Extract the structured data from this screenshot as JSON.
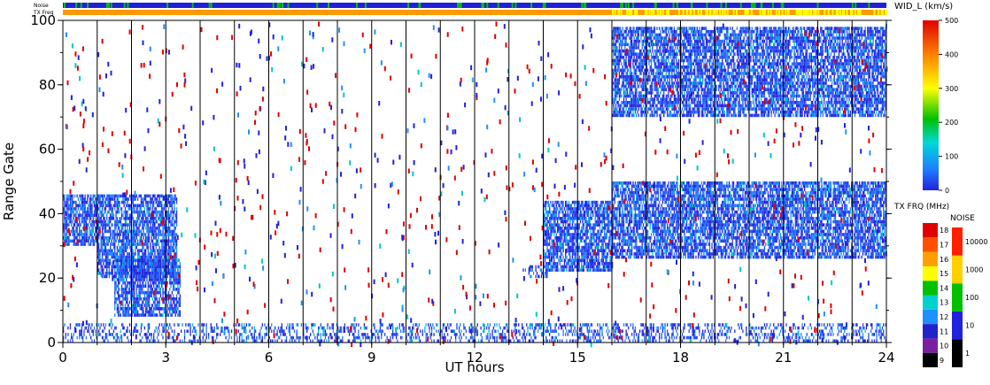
{
  "chart_data": {
    "type": "heatmap",
    "title": "",
    "xlabel": "UT hours",
    "ylabel": "Range Gate",
    "xlim": [
      0,
      24
    ],
    "ylim": [
      0,
      100
    ],
    "xticks": [
      "0",
      "3",
      "6",
      "9",
      "12",
      "15",
      "18",
      "21",
      "24"
    ],
    "yticks": [
      "0",
      "20",
      "40",
      "60",
      "80",
      "100"
    ],
    "hour_grid_lines": [
      1,
      2,
      3,
      4,
      5,
      6,
      7,
      8,
      9,
      10,
      11,
      12,
      13,
      14,
      15,
      16,
      17,
      18,
      19,
      20,
      21,
      22,
      23
    ],
    "strips": {
      "noise_label": "Noise",
      "txfreq_label": "TX Freq",
      "noise_base_color": "#2020d8",
      "txfreq_base_color": "#ff9a00"
    },
    "main_colorbar": {
      "title": "WID_L (km/s)",
      "ticks": [
        "0",
        "100",
        "200",
        "300",
        "400",
        "500"
      ],
      "range": [
        0,
        500
      ]
    },
    "txfreq_colorbar": {
      "title": "TX FRQ (MHz)",
      "ticks": [
        "9",
        "10",
        "11",
        "12",
        "13",
        "14",
        "15",
        "16",
        "17",
        "18"
      ],
      "colors": [
        "#000000",
        "#7a1fa0",
        "#2222cc",
        "#1e90ff",
        "#00d0d0",
        "#00c000",
        "#ffff00",
        "#ffa000",
        "#ff5000",
        "#e00000"
      ]
    },
    "noise_colorbar": {
      "title": "NOISE",
      "ticks": [
        "1",
        "10",
        "100",
        "1000",
        "10000"
      ],
      "colors": [
        "#000000",
        "#2222dd",
        "#00c000",
        "#ffd000",
        "#ff2000"
      ]
    },
    "backscatter_regions": [
      {
        "start_hour": 0.0,
        "end_hour": 1.0,
        "gate_low": 30,
        "gate_high": 46,
        "width_kms": 60
      },
      {
        "start_hour": 1.0,
        "end_hour": 3.3,
        "gate_low": 20,
        "gate_high": 46,
        "width_kms": 60
      },
      {
        "start_hour": 1.5,
        "end_hour": 3.4,
        "gate_low": 8,
        "gate_high": 26,
        "width_kms": 50
      },
      {
        "start_hour": 13.4,
        "end_hour": 14.1,
        "gate_low": 20,
        "gate_high": 24,
        "width_kms": 50
      },
      {
        "start_hour": 14.0,
        "end_hour": 16.0,
        "gate_low": 22,
        "gate_high": 44,
        "width_kms": 60
      },
      {
        "start_hour": 16.0,
        "end_hour": 24.0,
        "gate_low": 26,
        "gate_high": 50,
        "width_kms": 60
      },
      {
        "start_hour": 16.0,
        "end_hour": 24.0,
        "gate_low": 70,
        "gate_high": 98,
        "width_kms": 50
      },
      {
        "start_hour": 0.0,
        "end_hour": 24.0,
        "gate_low": 0,
        "gate_high": 6,
        "width_kms": 60
      }
    ]
  }
}
